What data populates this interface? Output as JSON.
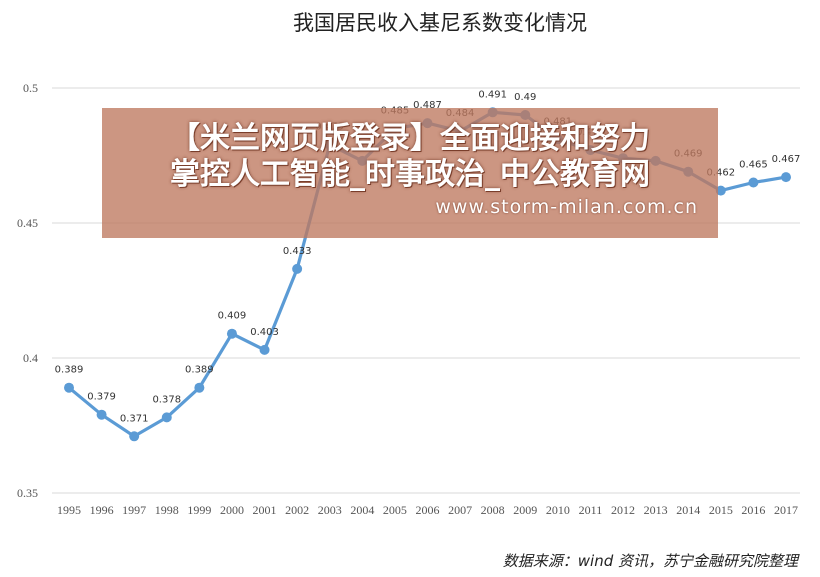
{
  "chart_data": {
    "type": "line",
    "title": "我国居民收入基尼系数变化情况",
    "xlabel": "",
    "ylabel": "",
    "ylim": [
      0.35,
      0.5
    ],
    "yticks": [
      "0.35",
      "0.4",
      "0.45",
      "0.5"
    ],
    "categories": [
      "1995",
      "1996",
      "1997",
      "1998",
      "1999",
      "2000",
      "2001",
      "2002",
      "2003",
      "2004",
      "2005",
      "2006",
      "2007",
      "2008",
      "2009",
      "2010",
      "2011",
      "2012",
      "2013",
      "2014",
      "2015",
      "2016",
      "2017"
    ],
    "series": [
      {
        "values": [
          0.389,
          0.379,
          0.371,
          0.378,
          0.389,
          0.409,
          0.403,
          0.433,
          0.479,
          0.473,
          0.485,
          0.487,
          0.484,
          0.491,
          0.49,
          0.481,
          0.477,
          0.474,
          0.473,
          0.469,
          0.462,
          0.465,
          0.467
        ],
        "labels": [
          "0.389",
          "0.379",
          "0.371",
          "0.378",
          "0.389",
          "0.409",
          "0.403",
          "0.433",
          "0.479",
          "",
          "0.485",
          "0.487",
          "0.484",
          "0.491",
          "0.49",
          "0.481",
          "0.477",
          "",
          "",
          "0.469",
          "0.462",
          "0.465",
          "0.467"
        ]
      }
    ],
    "grid": "horizontal",
    "legend": "none",
    "line_color": "#5b9bd5"
  },
  "source_note": "数据来源：wind 资讯，苏宁金融研究院整理",
  "watermark": {
    "line1": "【米兰网页版登录】全面迎接和努力",
    "line2": "掌控人工智能_时事政治_中公教育网",
    "url": "www.storm-milan.com.cn"
  }
}
